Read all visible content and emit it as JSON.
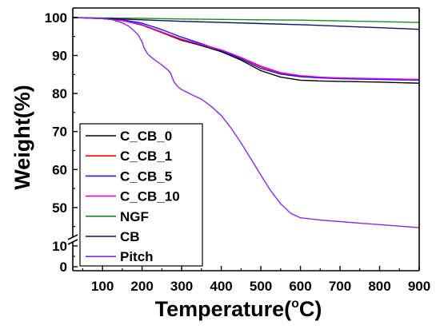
{
  "chart_data": {
    "type": "line",
    "xlabel": {
      "main": "Temperature(",
      "sup": "o",
      "end": "C)"
    },
    "ylabel": "Weight(%)",
    "xlim": [
      25,
      900
    ],
    "x_ticks": [
      100,
      200,
      300,
      400,
      500,
      600,
      700,
      800,
      900
    ],
    "y_axis_break": true,
    "y_segments": [
      {
        "range": [
          -1.9,
          11.9
        ],
        "ticks": [
          0,
          10
        ]
      },
      {
        "range": [
          42.2,
          102.5
        ],
        "ticks": [
          50,
          60,
          70,
          80,
          90,
          100
        ]
      }
    ],
    "grid": false,
    "legend_position": "bottom-left",
    "series": [
      {
        "name": "C_CB_0",
        "color": "#000000",
        "points": [
          [
            25,
            100
          ],
          [
            100,
            99.7
          ],
          [
            150,
            99.2
          ],
          [
            200,
            98.0
          ],
          [
            250,
            96.0
          ],
          [
            300,
            94.0
          ],
          [
            350,
            92.6
          ],
          [
            400,
            91.0
          ],
          [
            450,
            88.8
          ],
          [
            500,
            86.0
          ],
          [
            550,
            84.3
          ],
          [
            600,
            83.5
          ],
          [
            650,
            83.3
          ],
          [
            700,
            83.2
          ],
          [
            800,
            83.0
          ],
          [
            900,
            82.7
          ]
        ]
      },
      {
        "name": "C_CB_1",
        "color": "#ff0000",
        "points": [
          [
            25,
            100
          ],
          [
            100,
            99.7
          ],
          [
            150,
            99.2
          ],
          [
            200,
            98.1
          ],
          [
            250,
            96.1
          ],
          [
            300,
            94.2
          ],
          [
            350,
            92.9
          ],
          [
            400,
            91.4
          ],
          [
            450,
            89.4
          ],
          [
            500,
            87.0
          ],
          [
            550,
            85.4
          ],
          [
            600,
            84.6
          ],
          [
            650,
            84.2
          ],
          [
            700,
            84.0
          ],
          [
            800,
            83.8
          ],
          [
            900,
            83.6
          ]
        ]
      },
      {
        "name": "C_CB_5",
        "color": "#1a1ad9",
        "points": [
          [
            25,
            100
          ],
          [
            100,
            99.8
          ],
          [
            150,
            99.4
          ],
          [
            200,
            98.5
          ],
          [
            250,
            96.8
          ],
          [
            300,
            94.8
          ],
          [
            350,
            93.1
          ],
          [
            400,
            91.3
          ],
          [
            450,
            89.1
          ],
          [
            500,
            86.6
          ],
          [
            550,
            85.1
          ],
          [
            600,
            84.4
          ],
          [
            650,
            84.1
          ],
          [
            700,
            83.9
          ],
          [
            800,
            83.7
          ],
          [
            900,
            83.5
          ]
        ]
      },
      {
        "name": "C_CB_10",
        "color": "#e600e6",
        "points": [
          [
            25,
            100
          ],
          [
            100,
            99.7
          ],
          [
            150,
            99.2
          ],
          [
            200,
            98.1
          ],
          [
            250,
            96.2
          ],
          [
            300,
            94.3
          ],
          [
            350,
            92.9
          ],
          [
            400,
            91.5
          ],
          [
            450,
            89.5
          ],
          [
            500,
            87.2
          ],
          [
            550,
            85.5
          ],
          [
            600,
            84.7
          ],
          [
            650,
            84.3
          ],
          [
            700,
            84.1
          ],
          [
            800,
            83.9
          ],
          [
            900,
            83.7
          ]
        ]
      },
      {
        "name": "NGF",
        "color": "#1a8c1a",
        "points": [
          [
            25,
            100
          ],
          [
            100,
            99.9
          ],
          [
            200,
            99.8
          ],
          [
            300,
            99.6
          ],
          [
            400,
            99.5
          ],
          [
            500,
            99.4
          ],
          [
            600,
            99.3
          ],
          [
            700,
            99.1
          ],
          [
            800,
            98.9
          ],
          [
            900,
            98.7
          ]
        ]
      },
      {
        "name": "CB",
        "color": "#101060",
        "points": [
          [
            25,
            100
          ],
          [
            100,
            99.8
          ],
          [
            200,
            99.4
          ],
          [
            300,
            99.0
          ],
          [
            400,
            98.7
          ],
          [
            500,
            98.4
          ],
          [
            600,
            98.1
          ],
          [
            700,
            97.7
          ],
          [
            800,
            97.3
          ],
          [
            900,
            96.9
          ]
        ]
      },
      {
        "name": "Pitch",
        "color": "#8a2be2",
        "points": [
          [
            25,
            100
          ],
          [
            100,
            99.8
          ],
          [
            125,
            99.4
          ],
          [
            150,
            98.6
          ],
          [
            165,
            97.8
          ],
          [
            180,
            96.5
          ],
          [
            190,
            95.4
          ],
          [
            200,
            93.6
          ],
          [
            205,
            92.0
          ],
          [
            215,
            90.3
          ],
          [
            230,
            89.0
          ],
          [
            250,
            87.5
          ],
          [
            265,
            86.2
          ],
          [
            272,
            85.4
          ],
          [
            280,
            83.2
          ],
          [
            290,
            81.8
          ],
          [
            300,
            81.0
          ],
          [
            325,
            79.7
          ],
          [
            350,
            78.5
          ],
          [
            375,
            76.6
          ],
          [
            400,
            74.2
          ],
          [
            425,
            70.9
          ],
          [
            450,
            67.0
          ],
          [
            475,
            62.8
          ],
          [
            500,
            58.5
          ],
          [
            525,
            54.4
          ],
          [
            550,
            51.0
          ],
          [
            575,
            48.5
          ],
          [
            600,
            47.3
          ],
          [
            650,
            46.7
          ],
          [
            700,
            46.3
          ],
          [
            750,
            45.9
          ],
          [
            800,
            45.5
          ],
          [
            850,
            45.1
          ],
          [
            900,
            44.7
          ]
        ]
      }
    ]
  }
}
